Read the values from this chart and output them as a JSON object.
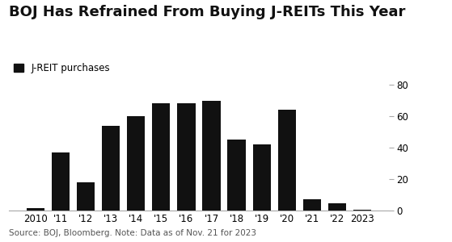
{
  "title": "BOJ Has Refrained From Buying J-REITs This Year",
  "legend_label": "J-REIT purchases",
  "source_text": "Source: BOJ, Bloomberg. Note: Data as of Nov. 21 for 2023",
  "categories": [
    "2010",
    "'11",
    "'12",
    "'13",
    "'14",
    "'15",
    "'16",
    "'17",
    "'18",
    "'19",
    "'20",
    "'21",
    "'22",
    "2023"
  ],
  "values": [
    1.5,
    37,
    18,
    54,
    60,
    68,
    68,
    70,
    45,
    42,
    64,
    7,
    4.5,
    0.5
  ],
  "bar_color": "#111111",
  "ylim": [
    0,
    80
  ],
  "yticks": [
    0,
    20,
    40,
    60,
    80
  ],
  "background_color": "#ffffff",
  "title_fontsize": 13,
  "legend_fontsize": 8.5,
  "tick_fontsize": 8.5,
  "source_fontsize": 7.5
}
